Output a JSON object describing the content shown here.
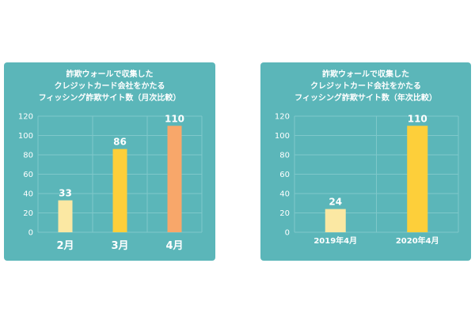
{
  "colors": {
    "panel_background": "#5bb6b9",
    "text": "#ffffff",
    "gridline": "#7fc8ca",
    "bar_light_yellow": "#fbe8a3",
    "bar_yellow": "#fdcf3a",
    "bar_orange": "#f8a76a"
  },
  "chart_data": [
    {
      "type": "bar",
      "title_lines": [
        "詐欺ウォールで収集した",
        "クレジットカード会社をかたる",
        "フィッシング詐欺サイト数（月次比較）"
      ],
      "categories": [
        "2月",
        "3月",
        "4月"
      ],
      "values": [
        33,
        86,
        110
      ],
      "value_labels": [
        "33",
        "86",
        "110"
      ],
      "bar_colors": [
        "#fbe8a3",
        "#fdcf3a",
        "#f8a76a"
      ],
      "ylim": [
        0,
        120
      ],
      "yticks": [
        0,
        20,
        40,
        60,
        80,
        100,
        120
      ],
      "ytick_labels": [
        "0",
        "20",
        "40",
        "60",
        "80",
        "100",
        "120"
      ],
      "grid": true,
      "xlabel": "",
      "ylabel": ""
    },
    {
      "type": "bar",
      "title_lines": [
        "詐欺ウォールで収集した",
        "クレジットカード会社をかたる",
        "フィッシング詐欺サイト数（年次比較）"
      ],
      "categories": [
        "2019年4月",
        "2020年4月"
      ],
      "values": [
        24,
        110
      ],
      "value_labels": [
        "24",
        "110"
      ],
      "bar_colors": [
        "#fbe8a3",
        "#fdcf3a"
      ],
      "ylim": [
        0,
        120
      ],
      "yticks": [
        0,
        20,
        40,
        60,
        80,
        100,
        120
      ],
      "ytick_labels": [
        "0",
        "20",
        "40",
        "60",
        "80",
        "100",
        "120"
      ],
      "grid": true,
      "xlabel": "",
      "ylabel": ""
    }
  ]
}
